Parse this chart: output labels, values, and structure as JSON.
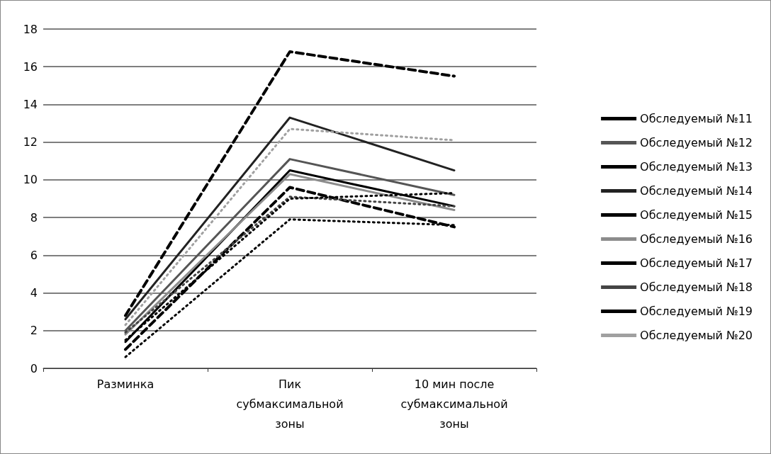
{
  "chart_data": {
    "type": "line",
    "categories": [
      "Разминка",
      "Пик субмаксимальной зоны",
      "10 мин после субмаксимальной зоны"
    ],
    "series": [
      {
        "name": "Обследуемый №11",
        "color": "#000000",
        "line_style": "dotted",
        "values": [
          0.6,
          7.9,
          7.6
        ]
      },
      {
        "name": "Обследуемый №12",
        "color": "#555555",
        "line_style": "solid",
        "values": [
          2.0,
          11.1,
          9.2
        ]
      },
      {
        "name": "Обследуемый №13",
        "color": "#000000",
        "line_style": "solid",
        "values": [
          1.4,
          10.5,
          8.6
        ]
      },
      {
        "name": "Обследуемый №14",
        "color": "#222222",
        "line_style": "solid",
        "values": [
          2.6,
          13.3,
          10.5
        ]
      },
      {
        "name": "Обследуемый №15",
        "color": "#000000",
        "line_style": "dashed",
        "values": [
          2.8,
          16.8,
          15.5
        ]
      },
      {
        "name": "Обследуемый №16",
        "color": "#8c8c8c",
        "line_style": "solid",
        "values": [
          1.8,
          10.3,
          8.4
        ]
      },
      {
        "name": "Обследуемый №17",
        "color": "#000000",
        "line_style": "dashed",
        "values": [
          1.0,
          9.6,
          7.5
        ]
      },
      {
        "name": "Обследуемый №18",
        "color": "#444444",
        "line_style": "dotted",
        "values": [
          1.9,
          9.1,
          8.6
        ]
      },
      {
        "name": "Обследуемый №19",
        "color": "#000000",
        "line_style": "dotted",
        "values": [
          1.5,
          9.0,
          9.3
        ]
      },
      {
        "name": "Обследуемый №20",
        "color": "#a0a0a0",
        "line_style": "dotted",
        "values": [
          2.3,
          12.7,
          12.1
        ]
      }
    ],
    "ylim": [
      0,
      18
    ],
    "yticks": [
      0,
      2,
      4,
      6,
      8,
      10,
      12,
      14,
      16,
      18
    ],
    "grid": "y",
    "legend": "right",
    "marker": "none"
  }
}
